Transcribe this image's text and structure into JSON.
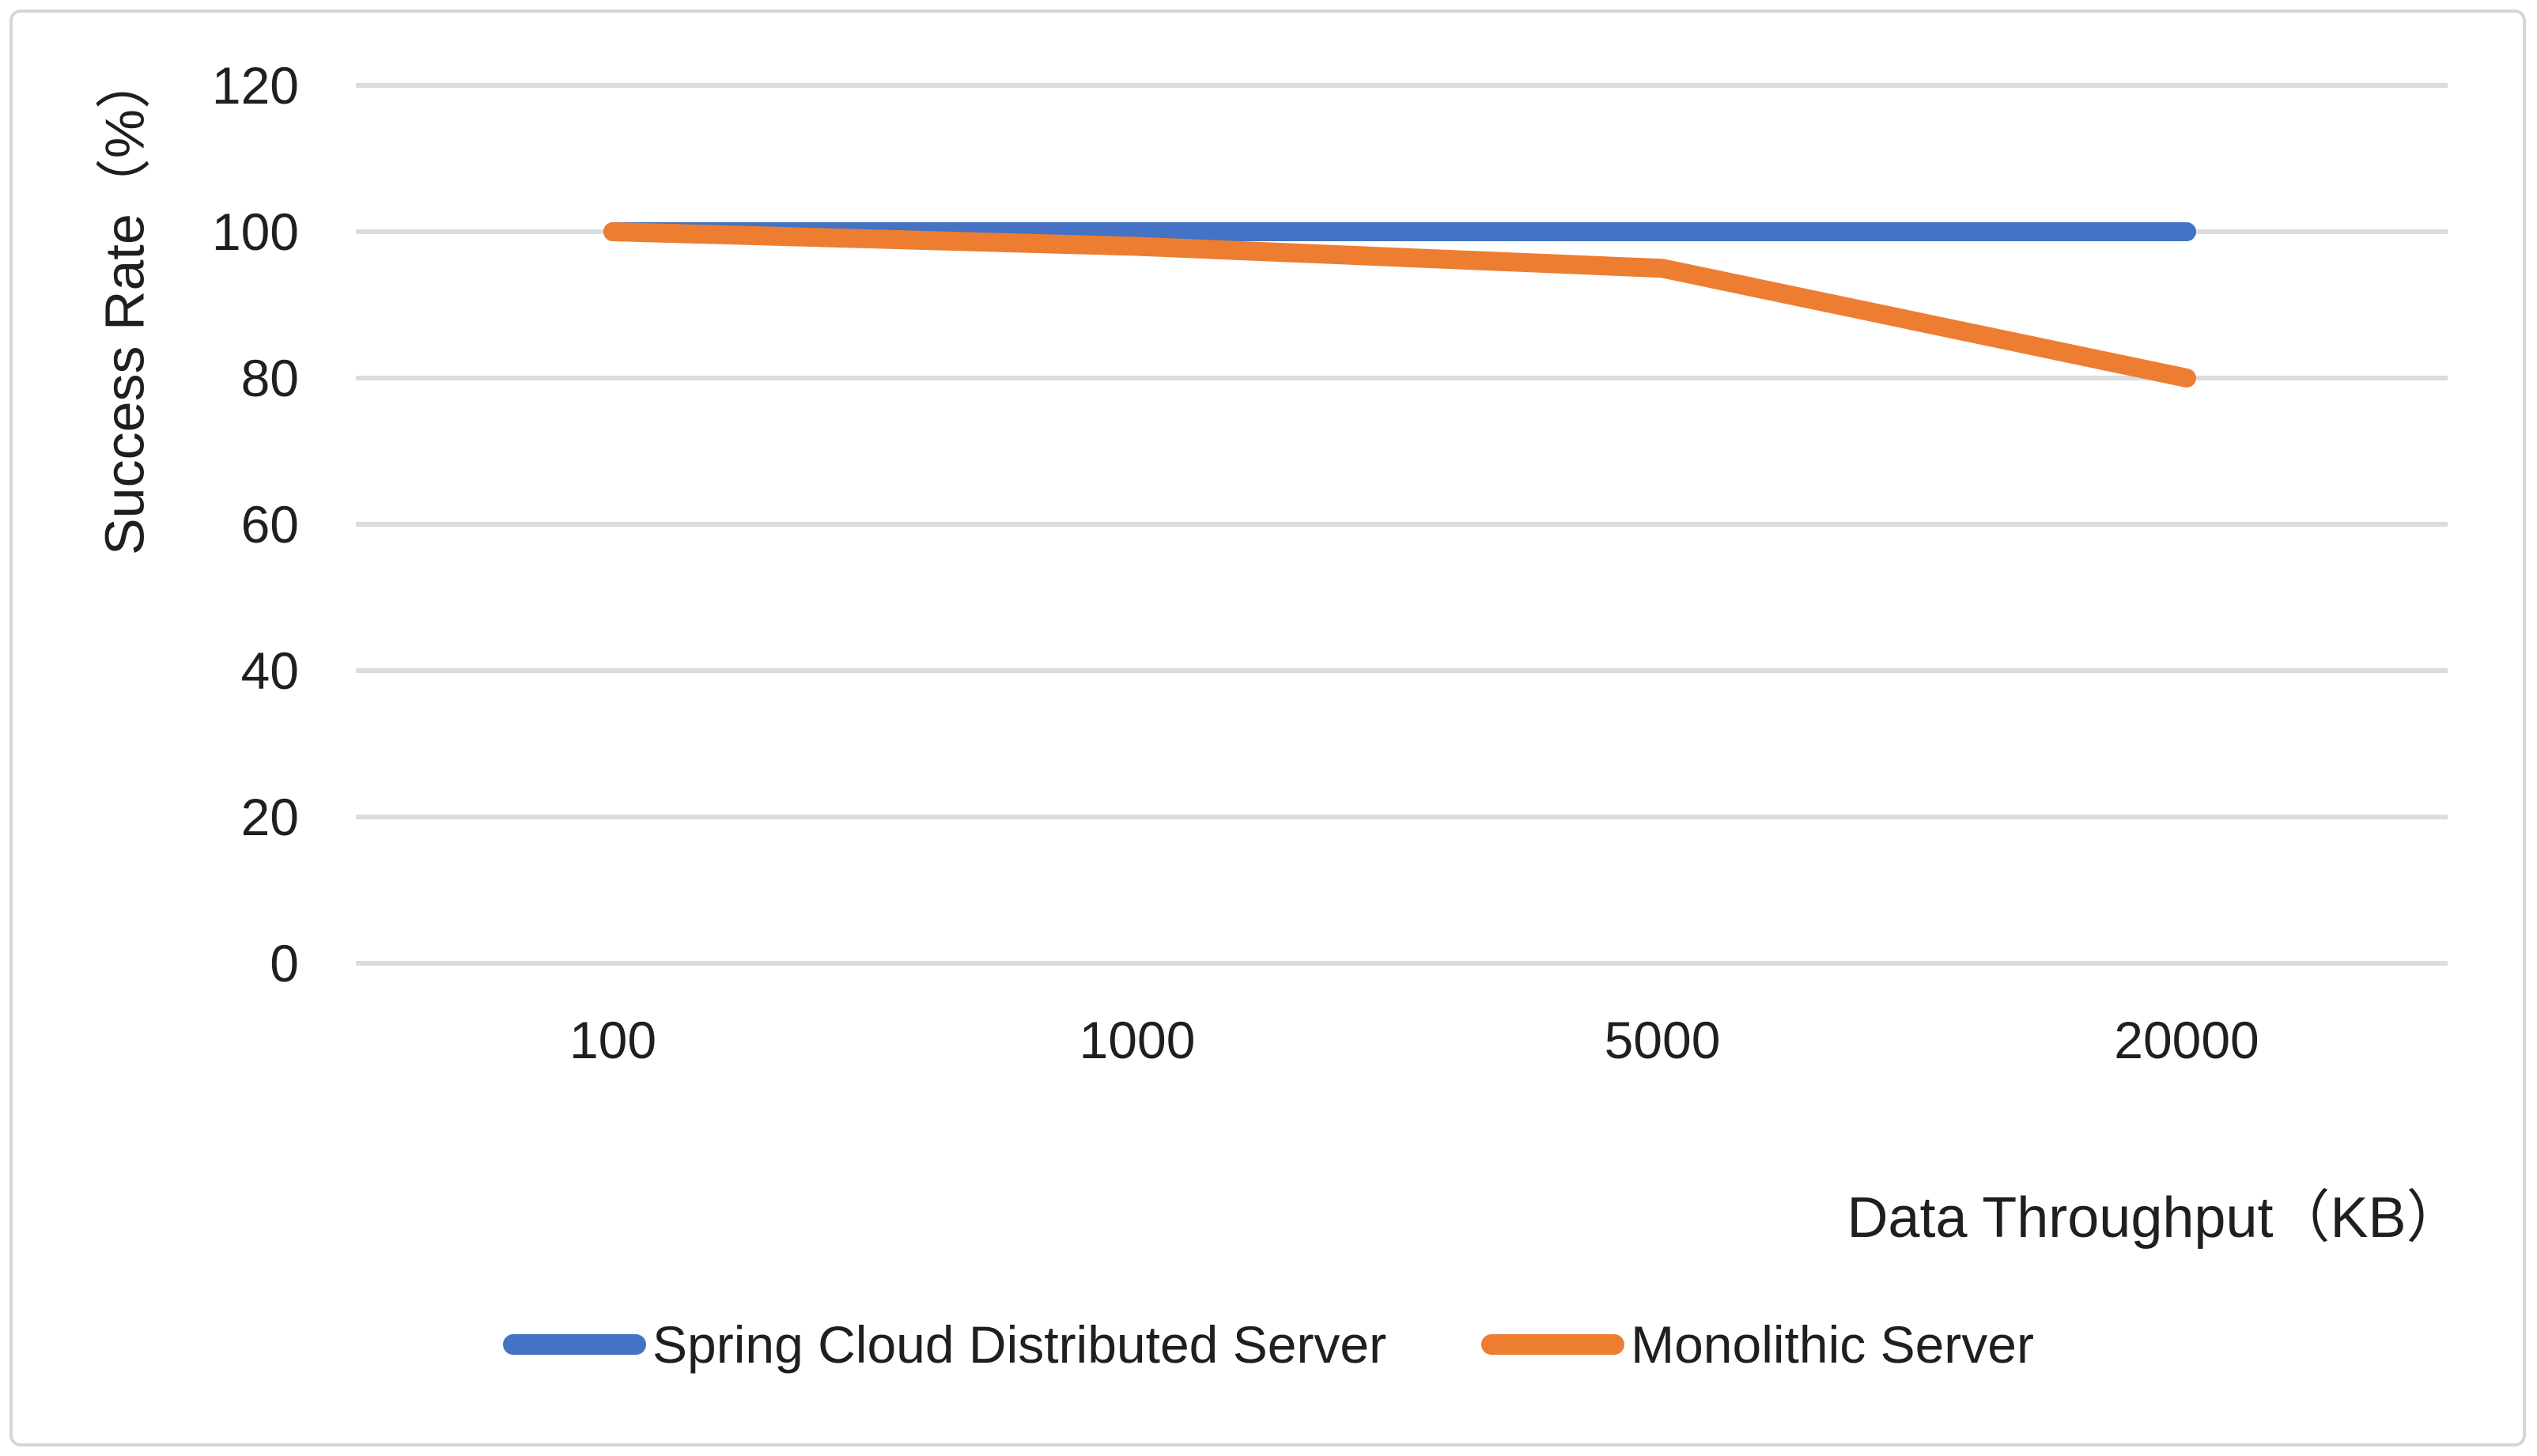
{
  "chart_data": {
    "type": "line",
    "title": "",
    "categories": [
      "100",
      "1000",
      "5000",
      "20000"
    ],
    "series": [
      {
        "name": "Spring Cloud Distributed Server",
        "color": "#4472C4",
        "values": [
          100,
          100,
          100,
          100
        ]
      },
      {
        "name": "Monolithic Server",
        "color": "#ED7D31",
        "values": [
          100,
          98,
          95,
          80
        ]
      }
    ],
    "xlabel": "Data Throughput（KB）",
    "ylabel": "Success Rate（%）",
    "ylim": [
      0,
      120
    ],
    "yticks": [
      0,
      20,
      40,
      60,
      80,
      100,
      120
    ],
    "grid": true,
    "legend_position": "bottom",
    "gridline_color": "#dcdcdc",
    "text_color": "#1f1f1f",
    "border_color": "#d6d6d6",
    "line_width": 24
  }
}
